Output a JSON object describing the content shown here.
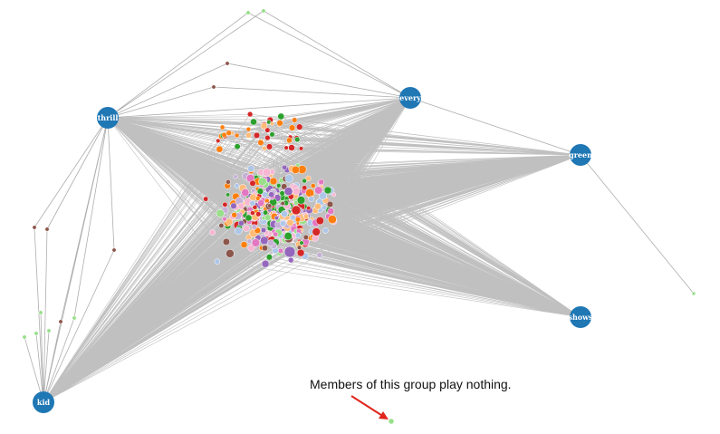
{
  "graph": {
    "hubs": [
      {
        "id": "thrill",
        "label": "thrill"
      },
      {
        "id": "every",
        "label": "every"
      },
      {
        "id": "green",
        "label": "green"
      },
      {
        "id": "shows",
        "label": "shows"
      },
      {
        "id": "kid",
        "label": "kid"
      }
    ],
    "annotation": {
      "text": "Members of this group play nothing."
    },
    "colors": {
      "hub": "#1f77b4",
      "edge": "#8c8c8c",
      "arrow": "#e0261c",
      "isolated_node": "#98df8a",
      "node_palette": [
        "#2ca02c",
        "#d62728",
        "#ff7f0e",
        "#ffbb78",
        "#9467bd",
        "#c5b0d5",
        "#98df8a",
        "#aec7e8",
        "#8c564b",
        "#f7b6d2",
        "#e377c2"
      ]
    }
  }
}
